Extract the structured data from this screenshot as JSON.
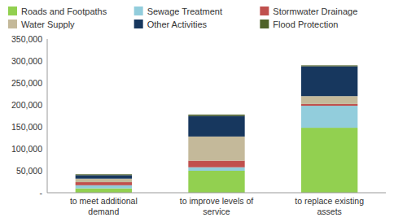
{
  "chart_data": {
    "type": "bar",
    "stacked": true,
    "categories": [
      "to meet additional\ndemand",
      "to improve levels of\nservice",
      "to replace existing\nassets"
    ],
    "series": [
      {
        "name": "Roads and Footpaths",
        "color": "#92d050",
        "values": [
          10000,
          50000,
          148000
        ]
      },
      {
        "name": "Sewage Treatment",
        "color": "#92cddc",
        "values": [
          7000,
          8000,
          50000
        ]
      },
      {
        "name": "Stormwater Drainage",
        "color": "#c0504d",
        "values": [
          7000,
          15000,
          4000
        ]
      },
      {
        "name": "Water Supply",
        "color": "#c4b99a",
        "values": [
          8000,
          55000,
          18000
        ]
      },
      {
        "name": "Other Activities",
        "color": "#17375e",
        "values": [
          8000,
          47000,
          68000
        ]
      },
      {
        "name": "Flood Protection",
        "color": "#4f6228",
        "values": [
          2000,
          3000,
          2000
        ]
      }
    ],
    "ylim": [
      0,
      350000
    ],
    "yticks": [
      {
        "value": 0,
        "label": "-"
      },
      {
        "value": 50000,
        "label": "50,000"
      },
      {
        "value": 100000,
        "label": "100,000"
      },
      {
        "value": 150000,
        "label": "150,000"
      },
      {
        "value": 200000,
        "label": "200,000"
      },
      {
        "value": 250000,
        "label": "250,000"
      },
      {
        "value": 300000,
        "label": "300,000"
      },
      {
        "value": 350000,
        "label": "350,000"
      }
    ],
    "grid": false,
    "legend": "top"
  }
}
